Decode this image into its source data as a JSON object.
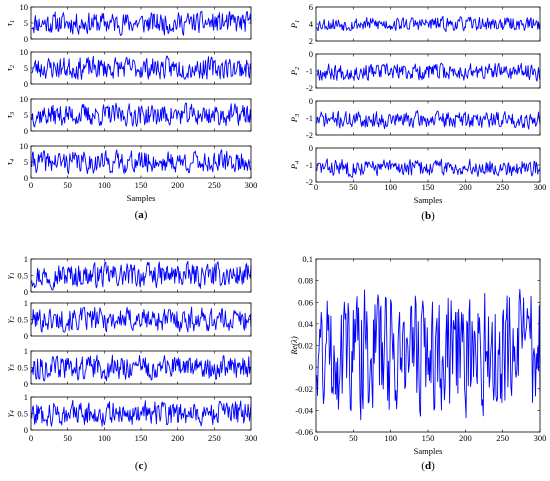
{
  "chart_data": [
    {
      "id": "a",
      "type": "line",
      "panel_label": "(a)",
      "xlabel": "Samples",
      "xlim": [
        0,
        300
      ],
      "xticks": [
        "0",
        "50",
        "100",
        "150",
        "200",
        "250",
        "300"
      ],
      "subplots": [
        {
          "ylabel": "τ",
          "ylabel_sub": "1",
          "ylim": [
            0,
            10
          ],
          "yticks": [
            "0",
            "5",
            "10"
          ],
          "base": 5,
          "amp": 4.2,
          "seed": 11
        },
        {
          "ylabel": "τ",
          "ylabel_sub": "2",
          "ylim": [
            0,
            10
          ],
          "yticks": [
            "0",
            "5",
            "10"
          ],
          "base": 5,
          "amp": 4.2,
          "seed": 23
        },
        {
          "ylabel": "τ",
          "ylabel_sub": "3",
          "ylim": [
            0,
            10
          ],
          "yticks": [
            "0",
            "5",
            "10"
          ],
          "base": 5,
          "amp": 4.2,
          "seed": 37
        },
        {
          "ylabel": "τ",
          "ylabel_sub": "4",
          "ylim": [
            0,
            10
          ],
          "yticks": [
            "0",
            "5",
            "10"
          ],
          "base": 5,
          "amp": 4.2,
          "seed": 41
        }
      ]
    },
    {
      "id": "b",
      "type": "line",
      "panel_label": "(b)",
      "xlabel": "Samples",
      "xlim": [
        0,
        300
      ],
      "xticks": [
        "0",
        "50",
        "100",
        "150",
        "200",
        "250",
        "300"
      ],
      "subplots": [
        {
          "ylabel": "P",
          "ylabel_sub": "1",
          "ylim": [
            2,
            6
          ],
          "yticks": [
            "2",
            "4",
            "6"
          ],
          "base": 4,
          "amp": 1.0,
          "seed": 53
        },
        {
          "ylabel": "P",
          "ylabel_sub": "2",
          "ylim": [
            -2,
            0
          ],
          "yticks": [
            "-2",
            "-1",
            "0"
          ],
          "base": -1.05,
          "amp": 0.6,
          "seed": 67
        },
        {
          "ylabel": "P",
          "ylabel_sub": "3",
          "ylim": [
            -2,
            0
          ],
          "yticks": [
            "-2",
            "-1",
            "0"
          ],
          "base": -1.1,
          "amp": 0.6,
          "seed": 71
        },
        {
          "ylabel": "P",
          "ylabel_sub": "4",
          "ylim": [
            -2,
            0
          ],
          "yticks": [
            "-2",
            "-1",
            "0"
          ],
          "base": -1.15,
          "amp": 0.6,
          "seed": 83
        }
      ]
    },
    {
      "id": "c",
      "type": "line",
      "panel_label": "(c)",
      "xlabel": "",
      "xlim": [
        0,
        300
      ],
      "xticks": [
        "0",
        "50",
        "100",
        "150",
        "200",
        "250",
        "300"
      ],
      "subplots": [
        {
          "ylabel": "γ",
          "ylabel_sub": "1",
          "ylim": [
            0,
            1
          ],
          "yticks": [
            "0",
            "0.5",
            "1"
          ],
          "base": 0.5,
          "amp": 0.45,
          "seed": 97
        },
        {
          "ylabel": "γ",
          "ylabel_sub": "2",
          "ylim": [
            0,
            1
          ],
          "yticks": [
            "0",
            "0.5",
            "1"
          ],
          "base": 0.5,
          "amp": 0.45,
          "seed": 101
        },
        {
          "ylabel": "γ",
          "ylabel_sub": "3",
          "ylim": [
            0,
            1
          ],
          "yticks": [
            "0",
            "0.5",
            "1"
          ],
          "base": 0.5,
          "amp": 0.45,
          "seed": 113
        },
        {
          "ylabel": "γ",
          "ylabel_sub": "4",
          "ylim": [
            0,
            1
          ],
          "yticks": [
            "0",
            "0.5",
            "1"
          ],
          "base": 0.5,
          "amp": 0.45,
          "seed": 127
        }
      ]
    },
    {
      "id": "d",
      "type": "line",
      "panel_label": "(d)",
      "xlabel": "Samples",
      "ylabel": "Re(λ)",
      "xlim": [
        0,
        300
      ],
      "ylim": [
        -0.06,
        0.1
      ],
      "xticks": [
        "0",
        "50",
        "100",
        "150",
        "200",
        "250",
        "300"
      ],
      "yticks": [
        "-0.06",
        "-0.04",
        "-0.02",
        "0",
        "0.02",
        "0.04",
        "0.06",
        "0.08",
        "0.1"
      ],
      "base": 0.015,
      "amp": 0.07,
      "seed": 131
    }
  ]
}
